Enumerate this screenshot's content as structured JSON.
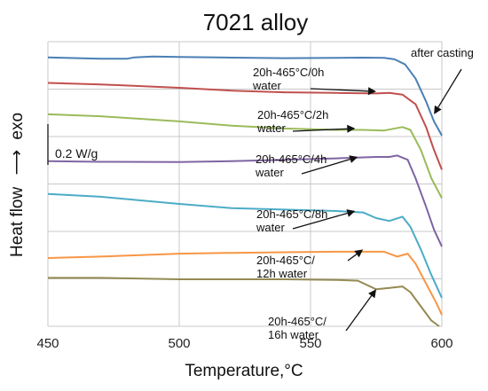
{
  "chart_data": {
    "type": "line",
    "title": "7021 alloy",
    "xlabel": "Temperature,°C",
    "ylabel": "Heat flow",
    "ylabel_suffix": "exo",
    "xlim": [
      450,
      600
    ],
    "xticks": [
      450,
      500,
      550,
      600
    ],
    "ylim": [
      0,
      1
    ],
    "grid": true,
    "scale_bar_label": "0.2 W/g",
    "series": [
      {
        "color": "#4a7fb5",
        "x": [
          450,
          470,
          480,
          483,
          490,
          500,
          520,
          540,
          560,
          570,
          578,
          582,
          586,
          590,
          594,
          597,
          600
        ],
        "y": [
          0.945,
          0.94,
          0.94,
          0.945,
          0.948,
          0.946,
          0.944,
          0.942,
          0.943,
          0.944,
          0.943,
          0.938,
          0.92,
          0.87,
          0.79,
          0.72,
          0.67
        ]
      },
      {
        "color": "#c0504d",
        "x": [
          450,
          470,
          500,
          520,
          540,
          560,
          575,
          580,
          585,
          590,
          594,
          597,
          600
        ],
        "y": [
          0.855,
          0.85,
          0.838,
          0.828,
          0.822,
          0.82,
          0.818,
          0.82,
          0.814,
          0.78,
          0.7,
          0.62,
          0.55
        ]
      },
      {
        "color": "#9bbb59",
        "x": [
          450,
          470,
          500,
          520,
          540,
          560,
          570,
          578,
          585,
          588,
          592,
          596,
          600
        ],
        "y": [
          0.745,
          0.738,
          0.72,
          0.705,
          0.695,
          0.69,
          0.69,
          0.688,
          0.7,
          0.69,
          0.62,
          0.52,
          0.45
        ]
      },
      {
        "color": "#8064a2",
        "x": [
          450,
          470,
          500,
          520,
          540,
          560,
          575,
          580,
          583,
          587,
          590,
          594,
          597,
          600
        ],
        "y": [
          0.58,
          0.578,
          0.577,
          0.58,
          0.585,
          0.59,
          0.595,
          0.595,
          0.6,
          0.585,
          0.52,
          0.42,
          0.34,
          0.28
        ]
      },
      {
        "color": "#4bacc6",
        "x": [
          450,
          470,
          500,
          520,
          540,
          560,
          570,
          575,
          580,
          585,
          588,
          592,
          596,
          600
        ],
        "y": [
          0.465,
          0.455,
          0.43,
          0.415,
          0.41,
          0.405,
          0.4,
          0.38,
          0.37,
          0.385,
          0.35,
          0.27,
          0.18,
          0.1
        ]
      },
      {
        "color": "#f79646",
        "x": [
          450,
          470,
          500,
          520,
          540,
          560,
          570,
          578,
          583,
          587,
          590,
          594,
          598,
          600
        ],
        "y": [
          0.24,
          0.245,
          0.255,
          0.258,
          0.26,
          0.262,
          0.262,
          0.262,
          0.245,
          0.255,
          0.22,
          0.15,
          0.08,
          0.04
        ]
      },
      {
        "color": "#948a54",
        "x": [
          450,
          470,
          500,
          520,
          540,
          560,
          568,
          575,
          580,
          585,
          588,
          592,
          596,
          599
        ],
        "y": [
          0.17,
          0.17,
          0.165,
          0.165,
          0.165,
          0.163,
          0.16,
          0.13,
          0.135,
          0.14,
          0.12,
          0.07,
          0.02,
          0.0
        ]
      }
    ],
    "annotations": [
      {
        "lines": [
          "after casting"
        ],
        "target": [
          597,
          0.745
        ]
      },
      {
        "lines": [
          "20h-465°C/0h",
          "water"
        ],
        "target": [
          575,
          0.825
        ]
      },
      {
        "lines": [
          "20h-465°C/2h",
          "water"
        ],
        "target": [
          567,
          0.695
        ]
      },
      {
        "lines": [
          "20h-465°C/4h",
          "water"
        ],
        "target": [
          568,
          0.595
        ]
      },
      {
        "lines": [
          "20h-465°C/8h",
          "water"
        ],
        "target": [
          567,
          0.405
        ]
      },
      {
        "lines": [
          "20h-465°C/",
          "12h water"
        ],
        "target": [
          570,
          0.27
        ]
      },
      {
        "lines": [
          "20h-465°C/",
          "16h water"
        ],
        "target": [
          575,
          0.13
        ]
      }
    ]
  }
}
